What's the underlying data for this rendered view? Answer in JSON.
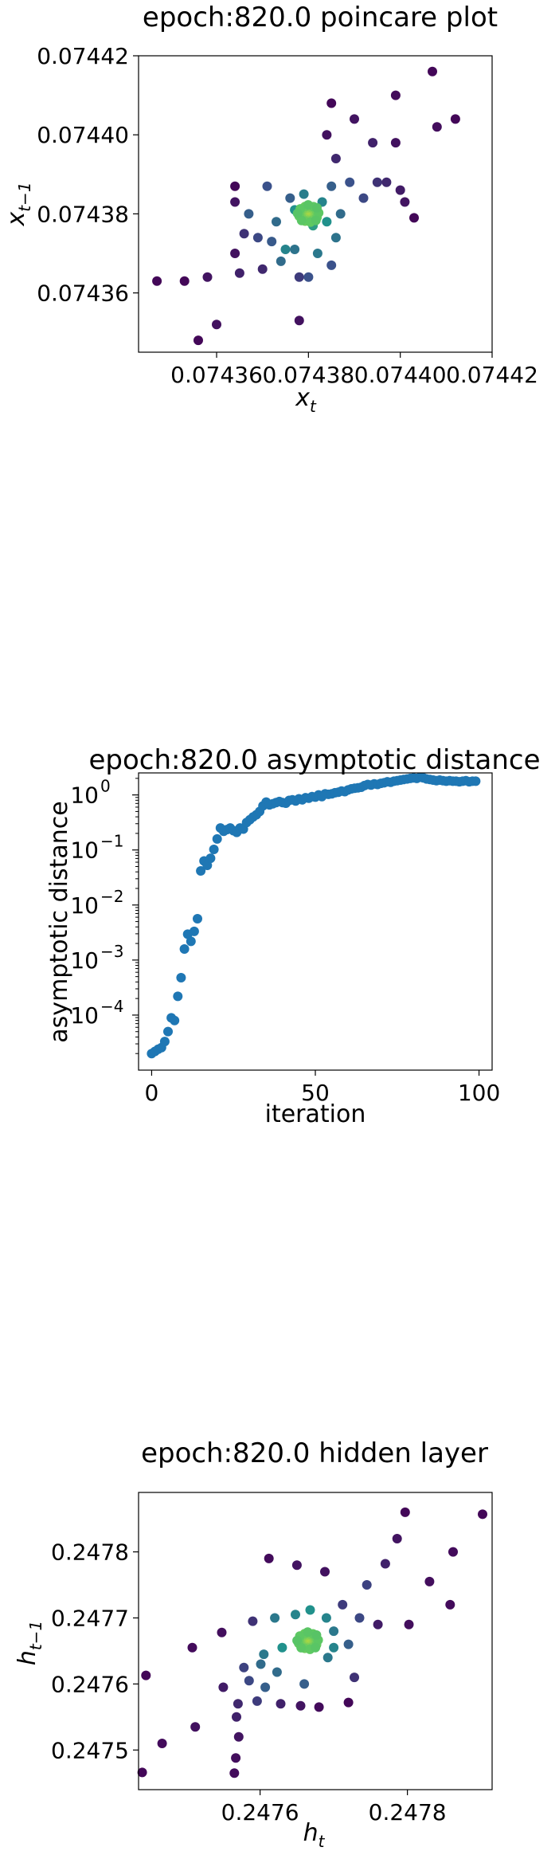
{
  "chart_data": [
    {
      "type": "scatter",
      "title": "epoch:820.0 poincare plot",
      "xlabel": "x",
      "xlabel_sub": "t",
      "ylabel": "x",
      "ylabel_sub": "t−1",
      "xlim": [
        0.074343,
        0.07442
      ],
      "ylim": [
        0.074345,
        0.07442
      ],
      "xticks": [
        {
          "v": 0.07436,
          "label": "0.07436"
        },
        {
          "v": 0.07438,
          "label": "0.07438"
        },
        {
          "v": 0.0744,
          "label": "0.07440"
        },
        {
          "v": 0.07442,
          "label": "0.07442"
        }
      ],
      "yticks": [
        {
          "v": 0.07436,
          "label": "0.07436"
        },
        {
          "v": 0.07438,
          "label": "0.07438"
        },
        {
          "v": 0.0744,
          "label": "0.07440"
        },
        {
          "v": 0.07442,
          "label": "0.07442"
        }
      ],
      "center": [
        0.07438,
        0.07438
      ],
      "grid": false,
      "colormap": "viridis",
      "points": [
        [
          0.074347,
          0.074363,
          0.02
        ],
        [
          0.074353,
          0.074363,
          0.02
        ],
        [
          0.074356,
          0.074348,
          0.02
        ],
        [
          0.07436,
          0.074352,
          0.05
        ],
        [
          0.074358,
          0.074364,
          0.06
        ],
        [
          0.074364,
          0.07437,
          0.05
        ],
        [
          0.074365,
          0.074365,
          0.1
        ],
        [
          0.074364,
          0.074387,
          0.02
        ],
        [
          0.074364,
          0.074383,
          0.06
        ],
        [
          0.074366,
          0.074375,
          0.15
        ],
        [
          0.074369,
          0.074374,
          0.22
        ],
        [
          0.07437,
          0.074366,
          0.12
        ],
        [
          0.074372,
          0.074373,
          0.28
        ],
        [
          0.074373,
          0.074378,
          0.35
        ],
        [
          0.074374,
          0.074368,
          0.35
        ],
        [
          0.074375,
          0.074371,
          0.45
        ],
        [
          0.074376,
          0.074384,
          0.3
        ],
        [
          0.074377,
          0.074381,
          0.5
        ],
        [
          0.074377,
          0.074371,
          0.38
        ],
        [
          0.074379,
          0.074385,
          0.42
        ],
        [
          0.074378,
          0.074353,
          0.05
        ],
        [
          0.074378,
          0.074364,
          0.18
        ],
        [
          0.07438,
          0.074364,
          0.25
        ],
        [
          0.074381,
          0.074377,
          0.55
        ],
        [
          0.074382,
          0.07437,
          0.4
        ],
        [
          0.074383,
          0.074383,
          0.45
        ],
        [
          0.074384,
          0.074378,
          0.5
        ],
        [
          0.074385,
          0.074367,
          0.25
        ],
        [
          0.074385,
          0.074387,
          0.3
        ],
        [
          0.074384,
          0.0744,
          0.05
        ],
        [
          0.074385,
          0.074408,
          0.02
        ],
        [
          0.074387,
          0.07438,
          0.35
        ],
        [
          0.074386,
          0.074394,
          0.12
        ],
        [
          0.074389,
          0.074388,
          0.25
        ],
        [
          0.07439,
          0.074404,
          0.06
        ],
        [
          0.074392,
          0.074384,
          0.22
        ],
        [
          0.074395,
          0.074388,
          0.15
        ],
        [
          0.074394,
          0.074398,
          0.1
        ],
        [
          0.074397,
          0.074388,
          0.12
        ],
        [
          0.0744,
          0.074386,
          0.08
        ],
        [
          0.074399,
          0.074398,
          0.05
        ],
        [
          0.074403,
          0.074379,
          0.02
        ],
        [
          0.074399,
          0.07441,
          0.03
        ],
        [
          0.074401,
          0.074383,
          0.06
        ],
        [
          0.074407,
          0.074416,
          0.02
        ],
        [
          0.074408,
          0.074402,
          0.04
        ],
        [
          0.074412,
          0.074404,
          0.02
        ],
        [
          0.074367,
          0.07438,
          0.3
        ],
        [
          0.074371,
          0.074387,
          0.25
        ],
        [
          0.074386,
          0.074374,
          0.38
        ]
      ]
    },
    {
      "type": "scatter",
      "title": "epoch:820.0 asymptotic distance",
      "xlabel": "iteration",
      "ylabel": "asymptotic distance",
      "xlim": [
        -4,
        104
      ],
      "ylog": true,
      "ylim_log10": [
        -5.0,
        0.4
      ],
      "xticks": [
        {
          "v": 0,
          "label": "0"
        },
        {
          "v": 50,
          "label": "50"
        },
        {
          "v": 100,
          "label": "100"
        }
      ],
      "yticks": [
        {
          "e": -4,
          "label": "10"
        },
        {
          "e": -3,
          "label": "10"
        },
        {
          "e": -2,
          "label": "10"
        },
        {
          "e": -1,
          "label": "10"
        },
        {
          "e": 0,
          "label": "10"
        }
      ],
      "ytick_exps": [
        "−4",
        "−3",
        "−2",
        "−1",
        "0"
      ],
      "grid": false,
      "color": "#1f77b4",
      "log10_values": [
        -4.7,
        -4.66,
        -4.62,
        -4.59,
        -4.48,
        -4.3,
        -4.05,
        -4.1,
        -3.66,
        -3.32,
        -2.8,
        -2.53,
        -2.66,
        -2.48,
        -2.25,
        -1.38,
        -1.2,
        -1.28,
        -1.15,
        -0.99,
        -0.8,
        -0.6,
        -0.66,
        -0.63,
        -0.6,
        -0.65,
        -0.68,
        -0.6,
        -0.62,
        -0.5,
        -0.45,
        -0.4,
        -0.36,
        -0.3,
        -0.2,
        -0.13,
        -0.18,
        -0.16,
        -0.14,
        -0.12,
        -0.14,
        -0.15,
        -0.1,
        -0.09,
        -0.11,
        -0.07,
        -0.09,
        -0.05,
        -0.06,
        -0.03,
        -0.04,
        0.0,
        -0.03,
        0.02,
        0.01,
        0.02,
        0.04,
        0.05,
        0.07,
        0.06,
        0.09,
        0.11,
        0.12,
        0.13,
        0.14,
        0.17,
        0.19,
        0.18,
        0.2,
        0.19,
        0.21,
        0.22,
        0.24,
        0.23,
        0.25,
        0.26,
        0.27,
        0.28,
        0.29,
        0.3,
        0.31,
        0.3,
        0.32,
        0.31,
        0.29,
        0.28,
        0.27,
        0.26,
        0.27,
        0.26,
        0.25,
        0.26,
        0.25,
        0.25,
        0.24,
        0.25,
        0.26,
        0.24,
        0.25,
        0.25
      ]
    },
    {
      "type": "scatter",
      "title": "epoch:820.0 hidden layer",
      "xlabel": "h",
      "xlabel_sub": "t",
      "ylabel": "h",
      "ylabel_sub": "t−1",
      "xlim": [
        0.247435,
        0.247915
      ],
      "ylim": [
        0.24744,
        0.24789
      ],
      "xticks": [
        {
          "v": 0.2476,
          "label": "0.2476"
        },
        {
          "v": 0.2478,
          "label": "0.2478"
        }
      ],
      "yticks": [
        {
          "v": 0.2475,
          "label": "0.2475"
        },
        {
          "v": 0.2476,
          "label": "0.2476"
        },
        {
          "v": 0.2477,
          "label": "0.2477"
        },
        {
          "v": 0.2478,
          "label": "0.2478"
        }
      ],
      "center": [
        0.247665,
        0.247665
      ],
      "grid": false,
      "colormap": "viridis",
      "points": [
        [
          0.24744,
          0.247466,
          0.02
        ],
        [
          0.247445,
          0.247613,
          0.02
        ],
        [
          0.247467,
          0.24751,
          0.03
        ],
        [
          0.247508,
          0.247655,
          0.03
        ],
        [
          0.247512,
          0.247535,
          0.05
        ],
        [
          0.247548,
          0.247678,
          0.04
        ],
        [
          0.24755,
          0.247595,
          0.08
        ],
        [
          0.247565,
          0.247465,
          0.03
        ],
        [
          0.247567,
          0.247488,
          0.04
        ],
        [
          0.247568,
          0.24755,
          0.1
        ],
        [
          0.247571,
          0.24752,
          0.06
        ],
        [
          0.24757,
          0.24757,
          0.12
        ],
        [
          0.247578,
          0.247625,
          0.2
        ],
        [
          0.247585,
          0.247605,
          0.22
        ],
        [
          0.24759,
          0.247695,
          0.15
        ],
        [
          0.247596,
          0.247574,
          0.18
        ],
        [
          0.247601,
          0.24763,
          0.35
        ],
        [
          0.247605,
          0.247645,
          0.4
        ],
        [
          0.247607,
          0.247595,
          0.3
        ],
        [
          0.247612,
          0.24779,
          0.03
        ],
        [
          0.24762,
          0.2477,
          0.4
        ],
        [
          0.247623,
          0.247618,
          0.35
        ],
        [
          0.247628,
          0.24757,
          0.1
        ],
        [
          0.247648,
          0.247705,
          0.45
        ],
        [
          0.24765,
          0.24778,
          0.06
        ],
        [
          0.247655,
          0.247567,
          0.06
        ],
        [
          0.24766,
          0.2476,
          0.3
        ],
        [
          0.247668,
          0.247712,
          0.5
        ],
        [
          0.24768,
          0.247565,
          0.03
        ],
        [
          0.247688,
          0.24777,
          0.05
        ],
        [
          0.24769,
          0.2477,
          0.45
        ],
        [
          0.247692,
          0.24764,
          0.4
        ],
        [
          0.2477,
          0.24768,
          0.4
        ],
        [
          0.247712,
          0.24772,
          0.18
        ],
        [
          0.24772,
          0.247572,
          0.02
        ],
        [
          0.24772,
          0.24766,
          0.3
        ],
        [
          0.247728,
          0.24761,
          0.15
        ],
        [
          0.247735,
          0.2477,
          0.22
        ],
        [
          0.247745,
          0.24775,
          0.2
        ],
        [
          0.24776,
          0.24769,
          0.08
        ],
        [
          0.24777,
          0.247782,
          0.1
        ],
        [
          0.247786,
          0.24782,
          0.06
        ],
        [
          0.247797,
          0.24786,
          0.02
        ],
        [
          0.247802,
          0.24769,
          0.04
        ],
        [
          0.24783,
          0.247755,
          0.04
        ],
        [
          0.247858,
          0.24772,
          0.03
        ],
        [
          0.247862,
          0.2478,
          0.03
        ],
        [
          0.247902,
          0.247857,
          0.02
        ],
        [
          0.24763,
          0.247655,
          0.5
        ],
        [
          0.2477,
          0.247655,
          0.45
        ]
      ]
    }
  ]
}
